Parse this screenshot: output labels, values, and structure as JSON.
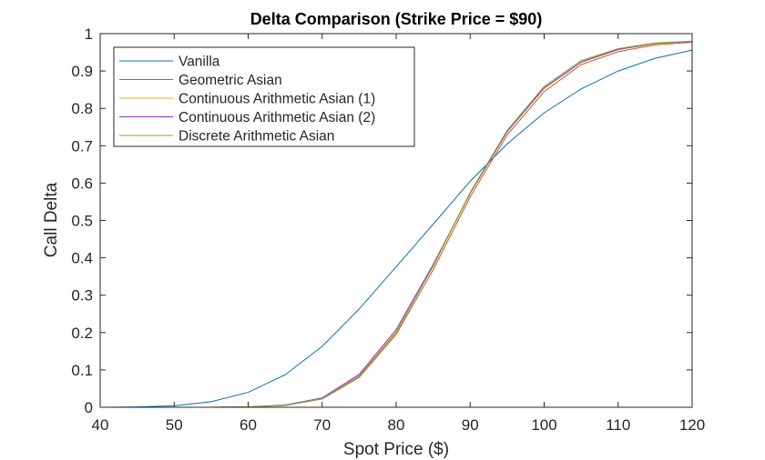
{
  "chart_data": {
    "type": "line",
    "title": "Delta Comparison (Strike Price = $90)",
    "xlabel": "Spot Price ($)",
    "ylabel": "Call Delta",
    "xlim": [
      40,
      120
    ],
    "ylim": [
      0,
      1
    ],
    "xticks": [
      "40",
      "50",
      "60",
      "70",
      "80",
      "90",
      "100",
      "110",
      "120"
    ],
    "yticks": [
      "0",
      "0.1",
      "0.2",
      "0.3",
      "0.4",
      "0.5",
      "0.6",
      "0.7",
      "0.8",
      "0.9",
      "1"
    ],
    "grid": false,
    "legend_position": "top-left",
    "x": [
      40,
      45,
      50,
      55,
      60,
      65,
      70,
      75,
      80,
      85,
      90,
      95,
      100,
      105,
      110,
      115,
      120
    ],
    "series": [
      {
        "name": "Vanilla",
        "color": "#0072BD",
        "values": [
          0,
          0.001,
          0.004,
          0.015,
          0.04,
          0.087,
          0.163,
          0.263,
          0.376,
          0.49,
          0.605,
          0.705,
          0.788,
          0.852,
          0.9,
          0.934,
          0.956
        ]
      },
      {
        "name": "Geometric Asian",
        "color": "#D95319",
        "values": [
          0,
          0,
          0,
          0,
          0.001,
          0.005,
          0.022,
          0.08,
          0.195,
          0.368,
          0.563,
          0.729,
          0.845,
          0.917,
          0.952,
          0.97,
          0.977
        ]
      },
      {
        "name": "Continuous Arithmetic Asian (1)",
        "color": "#EDB120",
        "values": [
          0,
          0,
          0,
          0,
          0.001,
          0.005,
          0.023,
          0.084,
          0.203,
          0.377,
          0.572,
          0.737,
          0.853,
          0.923,
          0.957,
          0.973,
          0.979
        ]
      },
      {
        "name": "Continuous Arithmetic Asian (2)",
        "color": "#8B2BE2",
        "values": [
          0,
          0,
          0,
          0,
          0.001,
          0.006,
          0.025,
          0.088,
          0.208,
          0.382,
          0.573,
          0.738,
          0.855,
          0.924,
          0.958,
          0.974,
          0.979
        ]
      },
      {
        "name": "Discrete Arithmetic Asian",
        "color": "#77AC30",
        "values": [
          0,
          0,
          0,
          0,
          0.001,
          0.005,
          0.023,
          0.083,
          0.2,
          0.378,
          0.575,
          0.741,
          0.859,
          0.928,
          0.96,
          0.975,
          0.98
        ]
      }
    ]
  }
}
